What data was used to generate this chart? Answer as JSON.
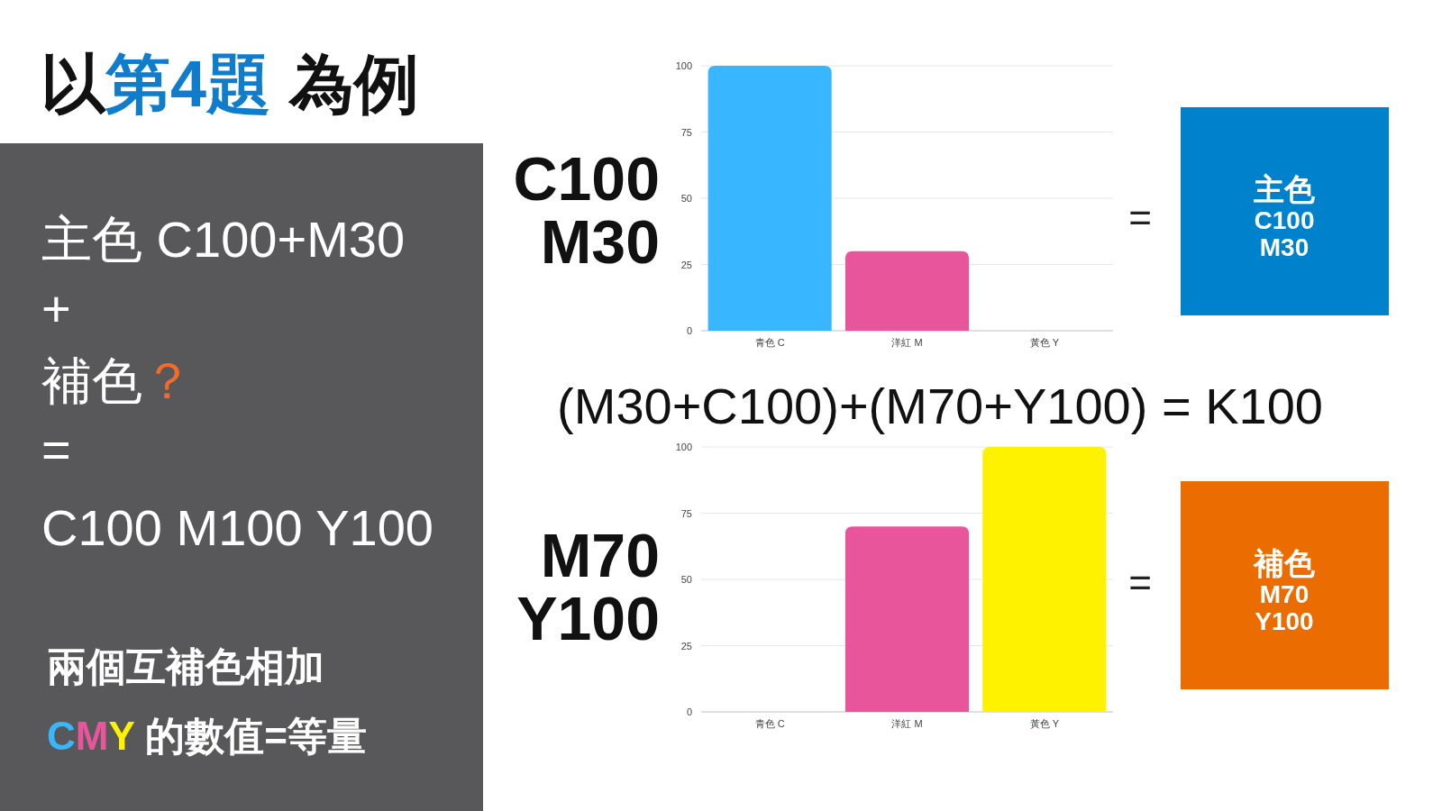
{
  "chart_data": [
    {
      "type": "other",
      "title": "以第4題 為例",
      "annotations": [
        "主色 C100+M30",
        "+",
        "補色？",
        "=",
        "C100 M100 Y100",
        "兩個互補色相加",
        "CMY 的數值=等量",
        "(M30+C100)+(M70+Y100) = K100"
      ]
    },
    {
      "type": "bar",
      "categories": [
        "青色 C",
        "洋紅 M",
        "黃色 Y"
      ],
      "values": [
        100,
        30,
        0
      ],
      "colors": [
        "#38b6ff",
        "#e8559a",
        "#fff200"
      ],
      "ylim": [
        0,
        100
      ],
      "yticks": [
        0,
        25,
        50,
        75,
        100
      ],
      "grid": "y",
      "annotations": [
        "C100\nM30",
        "=",
        "主色\nC100\nM30"
      ]
    },
    {
      "type": "bar",
      "categories": [
        "青色 C",
        "洋紅 M",
        "黃色 Y"
      ],
      "values": [
        0,
        70,
        100
      ],
      "colors": [
        "#38b6ff",
        "#e8559a",
        "#fff200"
      ],
      "ylim": [
        0,
        100
      ],
      "yticks": [
        0,
        25,
        50,
        75,
        100
      ],
      "grid": "y",
      "annotations": [
        "M70\nY100",
        "=",
        "補色\nM70\nY100"
      ]
    }
  ]
}
